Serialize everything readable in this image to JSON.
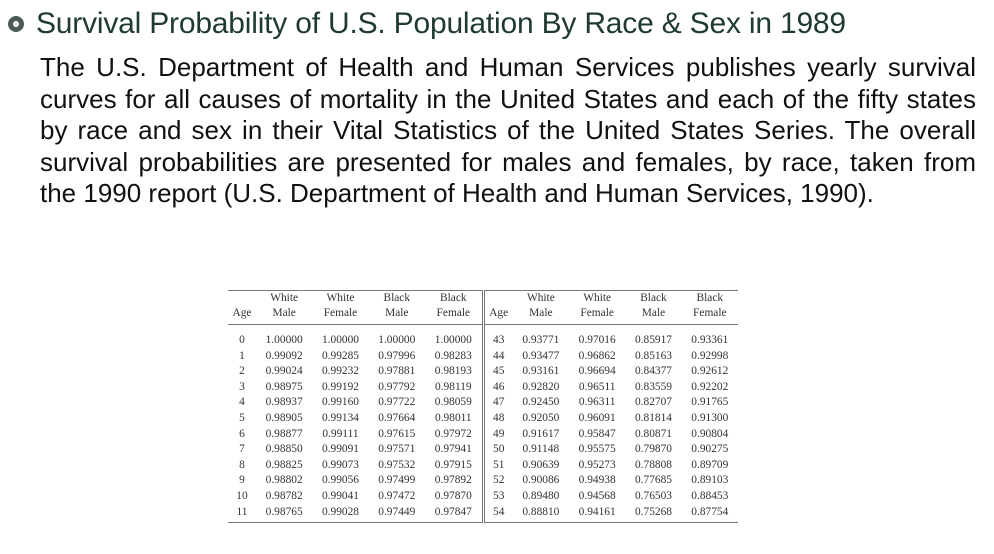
{
  "slide": {
    "title": "Survival Probability of U.S. Population By Race & Sex in 1989",
    "paragraph": "The U.S. Department of Health and Human Services publishes yearly survival curves for all causes of mortality in the United States and each of the fifty states by race and sex in their Vital Statistics of the United States Series. The overall survival probabilities are presented for males and females, by race, taken from the 1990 report (U.S. Department of Health and Human Services, 1990)."
  },
  "table": {
    "header_top": [
      "",
      "White",
      "White",
      "Black",
      "Black",
      "",
      "White",
      "White",
      "Black",
      "Black"
    ],
    "header_bottom": [
      "Age",
      "Male",
      "Female",
      "Male",
      "Female",
      "Age",
      "Male",
      "Female",
      "Male",
      "Female"
    ],
    "rows": [
      [
        "0",
        "1.00000",
        "1.00000",
        "1.00000",
        "1.00000",
        "43",
        "0.93771",
        "0.97016",
        "0.85917",
        "0.93361"
      ],
      [
        "1",
        "0.99092",
        "0.99285",
        "0.97996",
        "0.98283",
        "44",
        "0.93477",
        "0.96862",
        "0.85163",
        "0.92998"
      ],
      [
        "2",
        "0.99024",
        "0.99232",
        "0.97881",
        "0.98193",
        "45",
        "0.93161",
        "0.96694",
        "0.84377",
        "0.92612"
      ],
      [
        "3",
        "0.98975",
        "0.99192",
        "0.97792",
        "0.98119",
        "46",
        "0.92820",
        "0.96511",
        "0.83559",
        "0.92202"
      ],
      [
        "4",
        "0.98937",
        "0.99160",
        "0.97722",
        "0.98059",
        "47",
        "0.92450",
        "0.96311",
        "0.82707",
        "0.91765"
      ],
      [
        "5",
        "0.98905",
        "0.99134",
        "0.97664",
        "0.98011",
        "48",
        "0.92050",
        "0.96091",
        "0.81814",
        "0.91300"
      ],
      [
        "6",
        "0.98877",
        "0.99111",
        "0.97615",
        "0.97972",
        "49",
        "0.91617",
        "0.95847",
        "0.80871",
        "0.90804"
      ],
      [
        "7",
        "0.98850",
        "0.99091",
        "0.97571",
        "0.97941",
        "50",
        "0.91148",
        "0.95575",
        "0.79870",
        "0.90275"
      ],
      [
        "8",
        "0.98825",
        "0.99073",
        "0.97532",
        "0.97915",
        "51",
        "0.90639",
        "0.95273",
        "0.78808",
        "0.89709"
      ],
      [
        "9",
        "0.98802",
        "0.99056",
        "0.97499",
        "0.97892",
        "52",
        "0.90086",
        "0.94938",
        "0.77685",
        "0.89103"
      ],
      [
        "10",
        "0.98782",
        "0.99041",
        "0.97472",
        "0.97870",
        "53",
        "0.89480",
        "0.94568",
        "0.76503",
        "0.88453"
      ],
      [
        "11",
        "0.98765",
        "0.99028",
        "0.97449",
        "0.97847",
        "54",
        "0.88810",
        "0.94161",
        "0.75268",
        "0.87754"
      ]
    ]
  }
}
